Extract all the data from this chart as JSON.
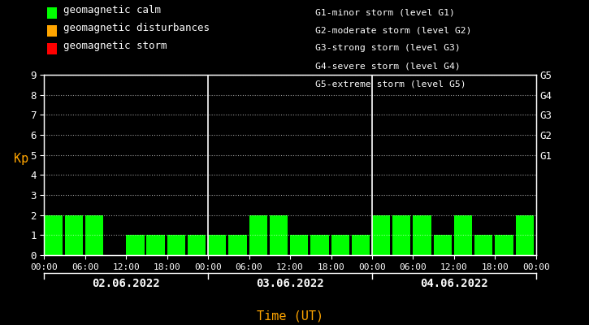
{
  "background_color": "#000000",
  "plot_bg_color": "#000000",
  "bar_color_calm": "#00ff00",
  "bar_color_disturbance": "#ffa500",
  "bar_color_storm": "#ff0000",
  "ylabel": "Kp",
  "xlabel": "Time (UT)",
  "ylim": [
    0,
    9
  ],
  "yticks": [
    0,
    1,
    2,
    3,
    4,
    5,
    6,
    7,
    8,
    9
  ],
  "days": [
    "02.06.2022",
    "03.06.2022",
    "04.06.2022"
  ],
  "kp_values": [
    [
      2,
      2,
      2,
      0,
      1,
      1,
      1,
      1
    ],
    [
      1,
      1,
      2,
      2,
      1,
      1,
      1,
      1
    ],
    [
      2,
      2,
      2,
      1,
      2,
      1,
      1,
      2
    ]
  ],
  "right_labels": [
    "G5",
    "G4",
    "G3",
    "G2",
    "G1"
  ],
  "right_label_yvals": [
    9,
    8,
    7,
    6,
    5
  ],
  "legend_items": [
    {
      "label": "geomagnetic calm",
      "color": "#00ff00"
    },
    {
      "label": "geomagnetic disturbances",
      "color": "#ffa500"
    },
    {
      "label": "geomagnetic storm",
      "color": "#ff0000"
    }
  ],
  "legend_text_color": "#ffffff",
  "right_info_text": [
    "G1-minor storm (level G1)",
    "G2-moderate storm (level G2)",
    "G3-strong storm (level G3)",
    "G4-severe storm (level G4)",
    "G5-extreme storm (level G5)"
  ],
  "text_color": "#ffffff",
  "xlabel_color": "#ffa500",
  "ylabel_color": "#ffa500",
  "tick_color": "#ffffff",
  "vline_color": "#ffffff",
  "dot_grid_color": "#ffffff",
  "font_family": "monospace"
}
